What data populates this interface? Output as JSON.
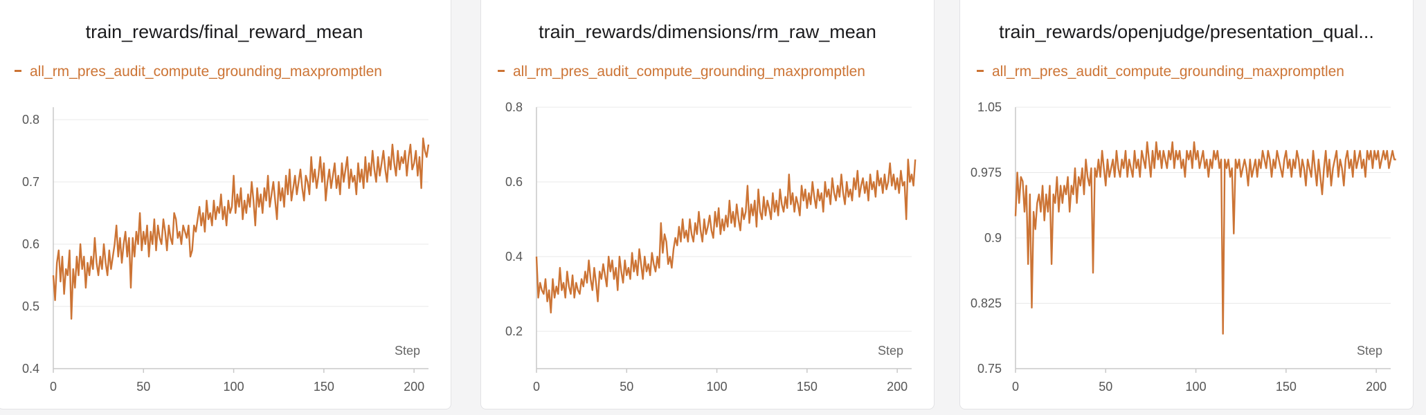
{
  "colors": {
    "series": "#cc7435",
    "grid": "#e8e8e8",
    "axis": "#c8c8c8"
  },
  "chart_data": [
    {
      "type": "line",
      "title": "train_rewards/final_reward_mean",
      "xlabel": "Step",
      "ylabel": "",
      "xlim": [
        0,
        208
      ],
      "ylim": [
        0.4,
        0.82
      ],
      "xticks": [
        0,
        50,
        100,
        150,
        200
      ],
      "yticks": [
        0.4,
        0.5,
        0.6,
        0.7,
        0.8
      ],
      "ytick_labels": [
        "0.4",
        "0.5",
        "0.6",
        "0.7",
        "0.8"
      ],
      "grid": true,
      "legend_position": "top-left",
      "series": [
        {
          "name": "all_rm_pres_audit_compute_grounding_maxpromptlen",
          "x_start": 0,
          "x_step": 1,
          "values": [
            0.55,
            0.51,
            0.57,
            0.59,
            0.54,
            0.58,
            0.52,
            0.56,
            0.55,
            0.59,
            0.48,
            0.56,
            0.53,
            0.58,
            0.55,
            0.6,
            0.56,
            0.58,
            0.53,
            0.57,
            0.55,
            0.58,
            0.56,
            0.61,
            0.57,
            0.55,
            0.58,
            0.56,
            0.6,
            0.57,
            0.55,
            0.59,
            0.56,
            0.58,
            0.6,
            0.63,
            0.58,
            0.61,
            0.57,
            0.6,
            0.62,
            0.58,
            0.61,
            0.53,
            0.61,
            0.58,
            0.62,
            0.6,
            0.65,
            0.59,
            0.62,
            0.6,
            0.63,
            0.58,
            0.62,
            0.6,
            0.64,
            0.59,
            0.63,
            0.61,
            0.6,
            0.64,
            0.62,
            0.59,
            0.63,
            0.61,
            0.6,
            0.65,
            0.64,
            0.61,
            0.62,
            0.6,
            0.63,
            0.62,
            0.61,
            0.63,
            0.58,
            0.59,
            0.63,
            0.62,
            0.64,
            0.66,
            0.63,
            0.65,
            0.62,
            0.67,
            0.64,
            0.65,
            0.63,
            0.67,
            0.64,
            0.66,
            0.65,
            0.68,
            0.64,
            0.66,
            0.63,
            0.67,
            0.65,
            0.66,
            0.71,
            0.65,
            0.68,
            0.66,
            0.69,
            0.64,
            0.67,
            0.65,
            0.68,
            0.66,
            0.7,
            0.67,
            0.63,
            0.69,
            0.66,
            0.68,
            0.65,
            0.69,
            0.67,
            0.71,
            0.66,
            0.68,
            0.7,
            0.67,
            0.64,
            0.7,
            0.67,
            0.69,
            0.66,
            0.71,
            0.68,
            0.72,
            0.67,
            0.69,
            0.71,
            0.68,
            0.7,
            0.72,
            0.69,
            0.67,
            0.71,
            0.7,
            0.68,
            0.74,
            0.7,
            0.72,
            0.69,
            0.71,
            0.74,
            0.7,
            0.73,
            0.67,
            0.7,
            0.72,
            0.69,
            0.71,
            0.73,
            0.69,
            0.71,
            0.68,
            0.73,
            0.7,
            0.72,
            0.74,
            0.69,
            0.72,
            0.7,
            0.71,
            0.68,
            0.73,
            0.7,
            0.72,
            0.69,
            0.74,
            0.7,
            0.73,
            0.71,
            0.75,
            0.72,
            0.7,
            0.74,
            0.71,
            0.73,
            0.75,
            0.72,
            0.7,
            0.74,
            0.72,
            0.76,
            0.73,
            0.71,
            0.75,
            0.72,
            0.74,
            0.73,
            0.75,
            0.71,
            0.74,
            0.76,
            0.72,
            0.73,
            0.75,
            0.71,
            0.74,
            0.69,
            0.77,
            0.75,
            0.74,
            0.76
          ]
        }
      ]
    },
    {
      "type": "line",
      "title": "train_rewards/dimensions/rm_raw_mean",
      "xlabel": "Step",
      "ylabel": "",
      "xlim": [
        0,
        208
      ],
      "ylim": [
        0.1,
        0.8
      ],
      "xticks": [
        0,
        50,
        100,
        150,
        200
      ],
      "yticks": [
        0.2,
        0.4,
        0.6,
        0.8
      ],
      "ytick_labels": [
        "0.2",
        "0.4",
        "0.6",
        "0.8"
      ],
      "grid": true,
      "legend_position": "top-left",
      "series": [
        {
          "name": "all_rm_pres_audit_compute_grounding_maxpromptlen",
          "x_start": 0,
          "x_step": 1,
          "values": [
            0.4,
            0.29,
            0.33,
            0.31,
            0.3,
            0.34,
            0.28,
            0.31,
            0.25,
            0.34,
            0.29,
            0.32,
            0.3,
            0.37,
            0.31,
            0.33,
            0.29,
            0.36,
            0.32,
            0.3,
            0.35,
            0.29,
            0.33,
            0.31,
            0.3,
            0.34,
            0.32,
            0.36,
            0.33,
            0.39,
            0.34,
            0.31,
            0.37,
            0.33,
            0.28,
            0.36,
            0.34,
            0.38,
            0.35,
            0.32,
            0.4,
            0.36,
            0.39,
            0.34,
            0.37,
            0.31,
            0.4,
            0.36,
            0.33,
            0.39,
            0.35,
            0.37,
            0.34,
            0.41,
            0.36,
            0.39,
            0.35,
            0.42,
            0.38,
            0.34,
            0.4,
            0.36,
            0.38,
            0.35,
            0.41,
            0.38,
            0.36,
            0.4,
            0.37,
            0.49,
            0.41,
            0.46,
            0.44,
            0.38,
            0.4,
            0.37,
            0.42,
            0.45,
            0.43,
            0.48,
            0.44,
            0.5,
            0.45,
            0.47,
            0.44,
            0.5,
            0.46,
            0.44,
            0.49,
            0.46,
            0.52,
            0.47,
            0.44,
            0.5,
            0.46,
            0.48,
            0.51,
            0.47,
            0.45,
            0.52,
            0.48,
            0.53,
            0.46,
            0.5,
            0.47,
            0.51,
            0.48,
            0.55,
            0.49,
            0.52,
            0.48,
            0.54,
            0.5,
            0.47,
            0.53,
            0.5,
            0.52,
            0.59,
            0.49,
            0.54,
            0.51,
            0.55,
            0.48,
            0.58,
            0.52,
            0.5,
            0.56,
            0.51,
            0.55,
            0.53,
            0.5,
            0.57,
            0.52,
            0.55,
            0.51,
            0.58,
            0.54,
            0.52,
            0.56,
            0.53,
            0.62,
            0.54,
            0.57,
            0.52,
            0.56,
            0.54,
            0.51,
            0.59,
            0.55,
            0.58,
            0.53,
            0.57,
            0.54,
            0.6,
            0.56,
            0.53,
            0.58,
            0.55,
            0.57,
            0.52,
            0.6,
            0.56,
            0.58,
            0.54,
            0.61,
            0.57,
            0.55,
            0.59,
            0.56,
            0.62,
            0.57,
            0.54,
            0.6,
            0.56,
            0.58,
            0.55,
            0.61,
            0.58,
            0.63,
            0.56,
            0.59,
            0.61,
            0.57,
            0.6,
            0.55,
            0.62,
            0.58,
            0.6,
            0.56,
            0.63,
            0.59,
            0.61,
            0.57,
            0.62,
            0.58,
            0.6,
            0.65,
            0.59,
            0.62,
            0.58,
            0.61,
            0.57,
            0.63,
            0.59,
            0.6,
            0.5,
            0.66,
            0.6,
            0.62,
            0.59,
            0.66
          ]
        }
      ]
    },
    {
      "type": "line",
      "title": "train_rewards/openjudge/presentation_qual...",
      "xlabel": "Step",
      "ylabel": "",
      "xlim": [
        0,
        208
      ],
      "ylim": [
        0.75,
        1.05
      ],
      "xticks": [
        0,
        50,
        100,
        150,
        200
      ],
      "yticks": [
        0.75,
        0.825,
        0.9,
        0.975,
        1.05
      ],
      "ytick_labels": [
        "0.75",
        "0.825",
        "0.9",
        "0.975",
        "1.05"
      ],
      "grid": true,
      "legend_position": "top-left",
      "series": [
        {
          "name": "all_rm_pres_audit_compute_grounding_maxpromptlen",
          "x_start": 0,
          "x_step": 1,
          "values": [
            0.925,
            0.975,
            0.94,
            0.97,
            0.965,
            0.93,
            0.96,
            0.87,
            0.95,
            0.82,
            0.93,
            0.91,
            0.94,
            0.95,
            0.93,
            0.96,
            0.92,
            0.95,
            0.93,
            0.96,
            0.87,
            0.95,
            0.94,
            0.97,
            0.93,
            0.96,
            0.94,
            0.96,
            0.95,
            0.97,
            0.93,
            0.96,
            0.95,
            0.98,
            0.94,
            0.97,
            0.96,
            0.98,
            0.95,
            0.99,
            0.97,
            0.96,
            0.98,
            0.86,
            0.98,
            0.97,
            0.99,
            0.97,
            1.0,
            0.98,
            0.96,
            0.99,
            0.97,
            0.98,
            0.99,
            0.97,
            1.0,
            0.98,
            0.97,
            0.99,
            0.98,
            1.0,
            0.97,
            0.99,
            0.98,
            0.97,
            1.0,
            0.98,
            0.99,
            0.97,
            1.0,
            0.99,
            0.98,
            1.01,
            0.99,
            0.97,
            1.0,
            0.98,
            1.01,
            0.99,
            1.0,
            0.98,
            1.0,
            0.99,
            0.98,
            1.0,
            0.99,
            1.01,
            0.98,
            1.0,
            0.99,
            1.0,
            0.98,
            0.99,
            0.97,
            1.0,
            0.99,
            1.0,
            0.98,
            1.01,
            0.99,
            1.0,
            0.98,
            0.99,
            1.0,
            0.98,
            0.99,
            0.97,
            0.99,
            0.98,
            1.0,
            0.99,
            1.0,
            0.98,
            0.99,
            0.79,
            0.99,
            0.98,
            0.99,
            0.97,
            0.98,
            0.905,
            0.99,
            0.98,
            0.99,
            0.97,
            0.98,
            0.99,
            0.98,
            0.96,
            0.99,
            0.97,
            0.98,
            0.99,
            0.97,
            0.99,
            0.98,
            1.0,
            0.99,
            0.98,
            1.0,
            0.99,
            0.97,
            0.99,
            0.98,
            1.0,
            0.99,
            0.98,
            0.97,
            0.99,
            1.0,
            0.98,
            0.99,
            0.97,
            0.99,
            0.98,
            1.0,
            0.99,
            0.97,
            0.99,
            0.98,
            0.96,
            0.99,
            0.98,
            0.97,
            1.0,
            0.98,
            0.96,
            0.99,
            0.97,
            0.95,
            0.98,
            1.0,
            0.97,
            0.99,
            0.96,
            0.98,
            0.99,
            1.0,
            0.97,
            0.99,
            0.98,
            0.96,
            0.99,
            1.0,
            0.98,
            0.99,
            0.97,
            1.0,
            0.98,
            0.99,
            1.0,
            0.98,
            0.99,
            0.97,
            1.0,
            0.99,
            1.0,
            0.98,
            1.0,
            0.99,
            1.0,
            0.98,
            0.99,
            1.0,
            0.99,
            1.0,
            0.98,
            0.99,
            1.0,
            0.99,
            0.99
          ]
        }
      ]
    }
  ]
}
